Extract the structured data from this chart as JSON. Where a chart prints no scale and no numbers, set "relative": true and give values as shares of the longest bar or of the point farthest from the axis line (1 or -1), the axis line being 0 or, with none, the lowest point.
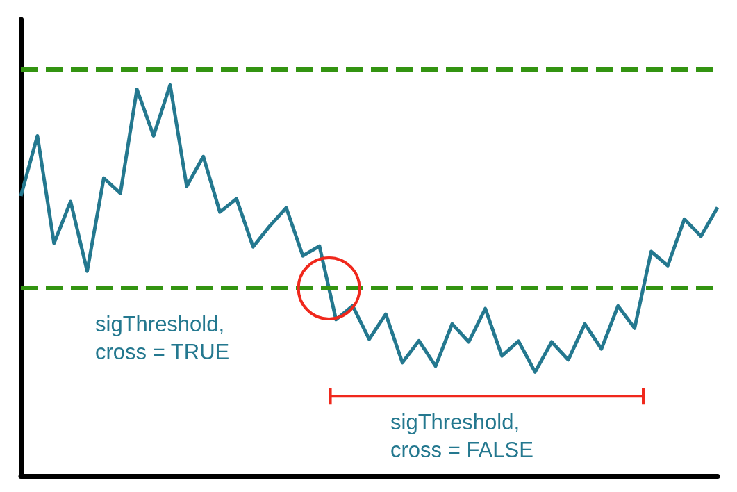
{
  "chart_data": {
    "type": "line",
    "relative": true,
    "grid": false,
    "marker": "none",
    "line_style": "solid",
    "categories": [
      null,
      null,
      null,
      null,
      null,
      null,
      null,
      null,
      null,
      null,
      null,
      null,
      null,
      null,
      null,
      null,
      null,
      null,
      null,
      null,
      null,
      null,
      null,
      null,
      null,
      null,
      null,
      null,
      null,
      null,
      null,
      null,
      null,
      null,
      null,
      null,
      null,
      null,
      null,
      null,
      null,
      null,
      null
    ],
    "series": [
      {
        "color": "#24788f",
        "values": [
          0.716,
          0.87,
          0.595,
          0.702,
          0.524,
          0.762,
          0.723,
          0.989,
          0.87,
          1,
          0.741,
          0.817,
          0.675,
          0.709,
          0.586,
          0.639,
          0.686,
          0.563,
          0.588,
          0.4,
          0.435,
          0.35,
          0.414,
          0.29,
          0.346,
          0.281,
          0.389,
          0.343,
          0.428,
          0.307,
          0.345,
          0.266,
          0.343,
          0.297,
          0.389,
          0.325,
          0.435,
          0.378,
          0.574,
          0.538,
          0.657,
          0.613,
          0.687
        ]
      }
    ],
    "ref_lines": [
      {
        "axis": "y",
        "value": 1.036,
        "color": "#339411",
        "line_style": "dashed"
      },
      {
        "axis": "y",
        "value": 0.48,
        "color": "#339411",
        "line_style": "dashed"
      },
      {
        "axis": "y",
        "value": 0.204,
        "color": "#f0281c",
        "line_style": "solid",
        "label": "sigThreshold,\ncross = FALSE"
      }
    ],
    "annotations": [
      "sigThreshold,\ncross = TRUE"
    ]
  }
}
